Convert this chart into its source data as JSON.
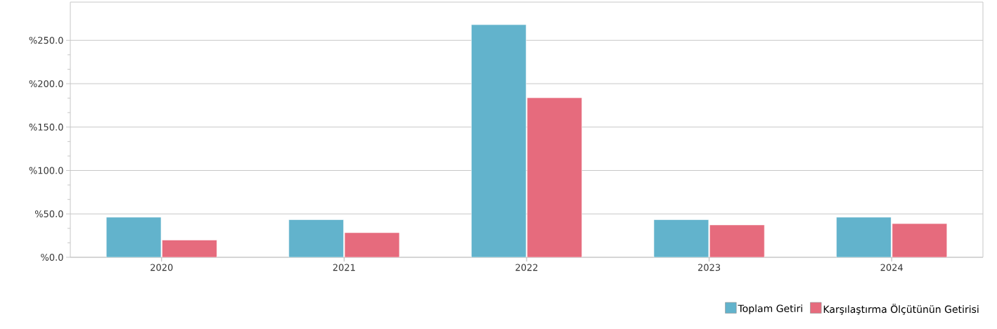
{
  "chart_data": {
    "type": "bar",
    "categories": [
      "2020",
      "2021",
      "2022",
      "2023",
      "2024"
    ],
    "series": [
      {
        "name": "Toplam Getiri",
        "color": "#62b3cc",
        "values": [
          46.2,
          43.3,
          268,
          43.3,
          46.2
        ]
      },
      {
        "name": "Karşılaştırma Ölçütünün Getirisi",
        "color": "#e66b7d",
        "values": [
          19.9,
          28.4,
          183.8,
          37.3,
          38.8
        ]
      }
    ],
    "ylim": [
      0,
      294
    ],
    "yticks": [
      {
        "value": 0,
        "label": "%0.0"
      },
      {
        "value": 50,
        "label": "%50.0"
      },
      {
        "value": 100,
        "label": "%100.0"
      },
      {
        "value": 150,
        "label": "%150.0"
      },
      {
        "value": 200,
        "label": "%200.0"
      },
      {
        "value": 250,
        "label": "%250.0"
      }
    ],
    "grid": "y",
    "legend": "bottom right"
  }
}
